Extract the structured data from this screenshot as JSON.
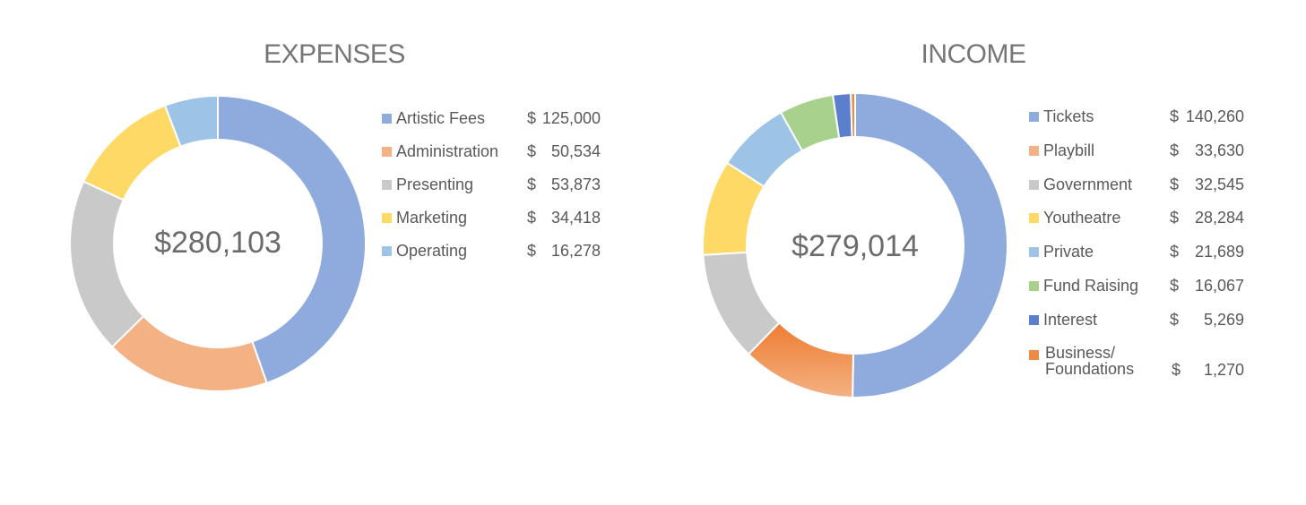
{
  "chart_data": [
    {
      "type": "pie",
      "style": "donut",
      "title": "EXPENSES",
      "center_label": "$280,103",
      "categories": [
        "Artistic Fees",
        "Administration",
        "Presenting",
        "Marketing",
        "Operating"
      ],
      "values": [
        125000,
        50534,
        53873,
        34418,
        16278
      ],
      "value_labels": [
        {
          "dollar": "$",
          "amount": "125,000"
        },
        {
          "dollar": "$",
          "amount": "50,534"
        },
        {
          "dollar": "$",
          "amount": "53,873"
        },
        {
          "dollar": "$",
          "amount": "34,418"
        },
        {
          "dollar": "$",
          "amount": "16,278"
        }
      ],
      "colors": [
        "#8FAADC",
        "#F4B183",
        "#C9C9C9",
        "#FFD966",
        "#9DC3E6"
      ],
      "legend_position": "right"
    },
    {
      "type": "pie",
      "style": "donut",
      "title": "INCOME",
      "center_label": "$279,014",
      "categories": [
        "Tickets",
        "Playbill",
        "Government",
        "Youtheatre",
        "Private",
        "Fund Raising",
        "Interest",
        "Business/\nFoundations"
      ],
      "values": [
        140260,
        33630,
        32545,
        28284,
        21689,
        16067,
        5269,
        1270
      ],
      "value_labels": [
        {
          "dollar": "$",
          "amount": "140,260"
        },
        {
          "dollar": "$",
          "amount": "33,630"
        },
        {
          "dollar": "$",
          "amount": "32,545"
        },
        {
          "dollar": "$",
          "amount": "28,284"
        },
        {
          "dollar": "$",
          "amount": "21,689"
        },
        {
          "dollar": "$",
          "amount": "16,067"
        },
        {
          "dollar": "$",
          "amount": "5,269"
        },
        {
          "dollar": "$",
          "amount": "1,270"
        }
      ],
      "colors": [
        "#8FAADC",
        "#F4B183",
        "#C9C9C9",
        "#FFD966",
        "#9DC3E6",
        "#A9D18E",
        "#5B7FCC",
        "#ED8B45"
      ],
      "legend_position": "right"
    }
  ]
}
